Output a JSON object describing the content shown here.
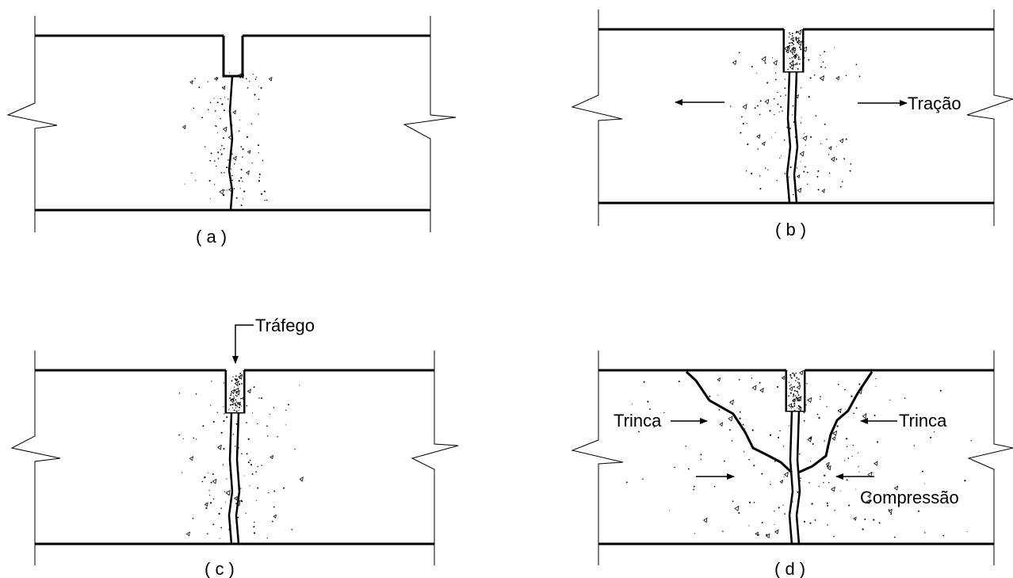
{
  "panels": {
    "a": {
      "caption": "( a )"
    },
    "b": {
      "caption": "( b )",
      "annotation": "Tração"
    },
    "c": {
      "caption": "( c )",
      "annotation": "Tráfego"
    },
    "d": {
      "caption": "( d )",
      "annotation_left": "Trinca",
      "annotation_right": "Trinca",
      "annotation_bottom": "Compressão"
    }
  }
}
